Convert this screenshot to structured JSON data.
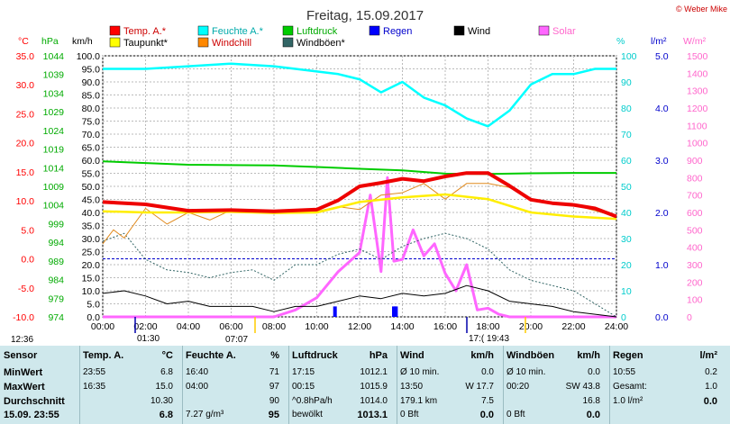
{
  "copyright": "© Weber Mike",
  "chart_data": {
    "type": "line",
    "title": "Freitag, 15.09.2017",
    "x_ticks": [
      "00:00",
      "02:00",
      "04:00",
      "06:00",
      "08:00",
      "10:00",
      "12:00",
      "14:00",
      "16:00",
      "18:00",
      "20:00",
      "22:00",
      "24:00"
    ],
    "xlim": [
      0,
      24
    ],
    "axes": {
      "temp": {
        "label": "°C",
        "ticks": [
          "35.0",
          "30.0",
          "25.0",
          "20.0",
          "15.0",
          "10.0",
          "5.0",
          "0.0",
          "-5.0",
          "-10.0"
        ],
        "ylim": [
          -10,
          35
        ],
        "color": "#ff0000"
      },
      "hpa": {
        "label": "hPa",
        "ticks": [
          "1044",
          "1039",
          "1034",
          "1029",
          "1024",
          "1019",
          "1014",
          "1009",
          "1004",
          "999",
          "994",
          "989",
          "984",
          "979",
          "974"
        ],
        "ylim": [
          974,
          1044
        ],
        "color": "#00aa00"
      },
      "wind": {
        "label": "km/h",
        "ticks": [
          "100.0",
          "95.0",
          "90.0",
          "85.0",
          "80.0",
          "75.0",
          "70.0",
          "65.0",
          "60.0",
          "55.0",
          "50.0",
          "45.0",
          "40.0",
          "35.0",
          "30.0",
          "25.0",
          "20.0",
          "15.0",
          "10.0",
          "5.0",
          "0.0"
        ],
        "ylim": [
          0,
          100
        ],
        "color": "#000000"
      },
      "humidity": {
        "label": "%",
        "ticks": [
          "100",
          "90",
          "80",
          "70",
          "60",
          "50",
          "40",
          "30",
          "20",
          "10",
          "0"
        ],
        "ylim": [
          0,
          100
        ],
        "color": "#00cccc"
      },
      "rain": {
        "label": "l/m²",
        "ticks": [
          "5.0",
          "4.0",
          "3.0",
          "2.0",
          "1.0",
          "0.0"
        ],
        "ylim": [
          0,
          5
        ],
        "color": "#0000cc"
      },
      "solar": {
        "label": "W/m²",
        "ticks": [
          "1500",
          "1400",
          "1300",
          "1200",
          "1100",
          "1000",
          "900",
          "800",
          "700",
          "600",
          "500",
          "400",
          "300",
          "200",
          "100",
          "0"
        ],
        "ylim": [
          0,
          1500
        ],
        "color": "#ff66cc"
      }
    },
    "legend": [
      {
        "name": "Temp. A.*",
        "color": "#ff0000"
      },
      {
        "name": "Feuchte A.*",
        "color": "#00ffff"
      },
      {
        "name": "Luftdruck",
        "color": "#00cc00"
      },
      {
        "name": "Regen",
        "color": "#0000ff"
      },
      {
        "name": "Wind",
        "color": "#000000"
      },
      {
        "name": "Solar",
        "color": "#ff66ff"
      },
      {
        "name": "Taupunkt*",
        "color": "#ffff00"
      },
      {
        "name": "Windchill",
        "color": "#ff8800"
      },
      {
        "name": "Windböen*",
        "color": "#336666"
      }
    ],
    "series": [
      {
        "name": "Temp. A.*",
        "axis": "temp",
        "x": [
          0,
          2,
          4,
          6,
          8,
          10,
          11,
          12,
          13,
          14,
          15,
          16,
          17,
          18,
          19,
          20,
          21,
          22,
          23,
          24
        ],
        "values": [
          9.8,
          9.4,
          8.3,
          8.4,
          8.2,
          8.5,
          10.1,
          12.5,
          13.1,
          13.8,
          13.4,
          14.2,
          14.8,
          14.8,
          12.6,
          10.2,
          9.6,
          9.3,
          8.7,
          7.3
        ]
      },
      {
        "name": "Feuchte A.*",
        "axis": "humidity",
        "x": [
          0,
          2,
          4,
          6,
          8,
          9,
          10,
          11,
          12,
          13,
          14,
          15,
          16,
          17,
          18,
          19,
          20,
          21,
          22,
          23,
          24
        ],
        "values": [
          95,
          95,
          96,
          97,
          96,
          95,
          94,
          93,
          91,
          86,
          90,
          84,
          81,
          76,
          73,
          79,
          89,
          93,
          93,
          95,
          95
        ]
      },
      {
        "name": "Luftdruck",
        "axis": "hpa",
        "x": [
          0,
          4,
          8,
          10,
          12,
          14,
          16,
          18,
          20,
          22,
          24
        ],
        "values": [
          1015.7,
          1014.8,
          1014.6,
          1014.2,
          1013.7,
          1013.3,
          1012.4,
          1012.3,
          1012.5,
          1012.6,
          1012.6
        ]
      },
      {
        "name": "Taupunkt*",
        "axis": "temp",
        "x": [
          0,
          2,
          4,
          6,
          8,
          10,
          12,
          14,
          16,
          18,
          20,
          22,
          24
        ],
        "values": [
          8.2,
          8.0,
          8.0,
          8.1,
          7.9,
          8.0,
          9.8,
          10.6,
          11.1,
          10.3,
          8.0,
          7.3,
          6.9
        ]
      },
      {
        "name": "Windchill",
        "axis": "temp",
        "x": [
          0,
          0.5,
          1,
          2,
          3,
          4,
          5,
          6,
          7,
          8,
          9,
          10,
          11,
          12,
          13,
          14,
          15,
          16,
          17,
          18,
          19,
          20,
          22,
          24
        ],
        "values": [
          2.6,
          5.0,
          3.6,
          8.7,
          6.0,
          8.0,
          6.7,
          8.4,
          8.1,
          8.1,
          8.2,
          8.2,
          9.0,
          8.5,
          11.0,
          11.4,
          13.0,
          10.3,
          13.0,
          13.0,
          12.3,
          10.2,
          9.3,
          7.3
        ]
      },
      {
        "name": "Wind",
        "axis": "wind",
        "x": [
          0,
          1,
          2,
          3,
          4,
          5,
          6,
          7,
          8,
          9,
          10,
          11,
          12,
          13,
          14,
          15,
          16,
          17,
          18,
          19,
          20,
          21,
          22,
          23,
          24
        ],
        "values": [
          9,
          10,
          8,
          5,
          6,
          4,
          4,
          4,
          2,
          4,
          4,
          6,
          8,
          7,
          9,
          8,
          9,
          12,
          10,
          6,
          5,
          4,
          2,
          1,
          0
        ]
      },
      {
        "name": "Windböen*",
        "axis": "wind",
        "x": [
          0,
          1,
          2,
          3,
          4,
          5,
          6,
          7,
          8,
          9,
          10,
          11,
          12,
          13,
          14,
          15,
          16,
          17,
          18,
          19,
          20,
          21,
          22,
          23,
          24
        ],
        "values": [
          29,
          32,
          22,
          18,
          17,
          15,
          17,
          18,
          14,
          20,
          20,
          24,
          26,
          22,
          27,
          30,
          32,
          30,
          26,
          18,
          14,
          12,
          10,
          5,
          0
        ]
      },
      {
        "name": "Solar",
        "axis": "solar",
        "x": [
          0,
          8,
          9,
          10,
          11,
          12,
          12.5,
          13,
          13.3,
          13.6,
          14,
          14.5,
          15,
          15.5,
          16,
          16.5,
          17,
          17.5,
          18,
          18.5,
          19,
          24
        ],
        "values": [
          0,
          0,
          40,
          110,
          260,
          370,
          700,
          260,
          800,
          320,
          330,
          500,
          350,
          420,
          250,
          150,
          300,
          40,
          50,
          15,
          0,
          0
        ]
      },
      {
        "name": "Regen",
        "axis": "rain",
        "x": [
          10.85,
          13.6,
          13.7
        ],
        "values": [
          0.2,
          0.2,
          0.2
        ]
      }
    ],
    "markers": [
      "12:36",
      "01:30",
      "07:07",
      "17:( 19:43"
    ]
  },
  "stats": {
    "columns": [
      {
        "header": "Sensor",
        "rows": [
          "MinWert",
          "MaxWert",
          "Durchschnitt",
          "15.09. 23:55"
        ]
      },
      {
        "header": "Temp. A.",
        "unit": "°C",
        "rows": [
          [
            "23:55",
            "6.8"
          ],
          [
            "16:35",
            "15.0"
          ],
          [
            "",
            "10.30"
          ],
          [
            "",
            "6.8"
          ]
        ]
      },
      {
        "header": "Feuchte A.",
        "unit": "%",
        "rows": [
          [
            "16:40",
            "71"
          ],
          [
            "04:00",
            "97"
          ],
          [
            "",
            "90"
          ],
          [
            "7.27 g/m³",
            "95"
          ]
        ]
      },
      {
        "header": "Luftdruck",
        "unit": "hPa",
        "rows": [
          [
            "17:15",
            "1012.1"
          ],
          [
            "00:15",
            "1015.9"
          ],
          [
            "^0.8hPa/h",
            "1014.0"
          ],
          [
            "bewölkt",
            "1013.1"
          ]
        ]
      },
      {
        "header": "Wind",
        "unit": "km/h",
        "rows": [
          [
            "Ø 10 min.",
            "0.0"
          ],
          [
            "13:50",
            "W 17.7"
          ],
          [
            "179.1 km",
            "7.5"
          ],
          [
            "0 Bft",
            "0.0"
          ]
        ]
      },
      {
        "header": "Windböen",
        "unit": "km/h",
        "rows": [
          [
            "Ø 10 min.",
            "0.0"
          ],
          [
            "00:20",
            "SW 43.8"
          ],
          [
            "",
            "16.8"
          ],
          [
            "0 Bft",
            "0.0"
          ]
        ]
      },
      {
        "header": "Regen",
        "unit": "l/m²",
        "rows": [
          [
            "10:55",
            "0.2"
          ],
          [
            "Gesamt:",
            "1.0"
          ],
          [
            "1.0 l/m²",
            "0.0"
          ]
        ]
      }
    ]
  }
}
